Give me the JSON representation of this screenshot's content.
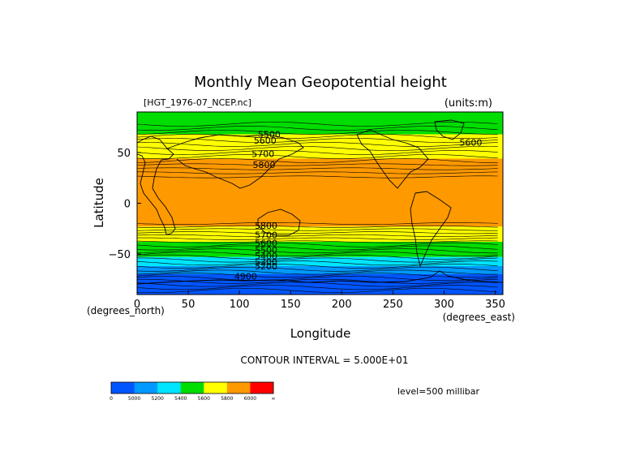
{
  "chart_data": {
    "type": "contour",
    "title": "Monthly Mean Geopotential height",
    "source_label": "[HGT_1976-07_NCEP.nc]",
    "units_label": "(units:m)",
    "xlabel": "Longitude",
    "ylabel": "Latitude",
    "x_units_label": "(degrees_east)",
    "y_units_label": "(degrees_north)",
    "xlim": [
      0,
      357.5
    ],
    "ylim": [
      -90,
      90
    ],
    "x_ticks": [
      {
        "value": 0,
        "label": "0"
      },
      {
        "value": 50,
        "label": "50"
      },
      {
        "value": 100,
        "label": "100"
      },
      {
        "value": 150,
        "label": "150"
      },
      {
        "value": 200,
        "label": "200"
      },
      {
        "value": 250,
        "label": "250"
      },
      {
        "value": 300,
        "label": "300"
      },
      {
        "value": 350,
        "label": "350"
      }
    ],
    "y_ticks": [
      {
        "value": 50,
        "label": "50"
      },
      {
        "value": 0,
        "label": "0"
      },
      {
        "value": -50,
        "label": "−50"
      }
    ],
    "contour_interval_text": "CONTOUR INTERVAL = 5.000E+01",
    "level_text": "level=500 millibar",
    "colorbar": {
      "colors": [
        "#0055ff",
        "#0099ff",
        "#00e5ff",
        "#00dd00",
        "#ffff00",
        "#ff9900",
        "#ff0000"
      ],
      "labels": [
        "0",
        "5000",
        "5200",
        "5400",
        "5600",
        "5800",
        "6000",
        "∞"
      ]
    },
    "bands": [
      {
        "lat_top": 90,
        "lat_bottom": 78,
        "color": "#00dd00"
      },
      {
        "lat_top": 78,
        "lat_bottom": 68,
        "color": "#00dd00"
      },
      {
        "lat_top": 68,
        "lat_bottom": 44,
        "color": "#ffff00"
      },
      {
        "lat_top": 44,
        "lat_bottom": -23,
        "color": "#ff9900"
      },
      {
        "lat_top": -23,
        "lat_bottom": -38,
        "color": "#ffff00"
      },
      {
        "lat_top": -38,
        "lat_bottom": -53,
        "color": "#00dd00"
      },
      {
        "lat_top": -53,
        "lat_bottom": -62,
        "color": "#00e5ff"
      },
      {
        "lat_top": -62,
        "lat_bottom": -70,
        "color": "#0099ff"
      },
      {
        "lat_top": -70,
        "lat_bottom": -90,
        "color": "#0055ff"
      }
    ],
    "contour_labels": [
      {
        "text": "5500",
        "lon": 118,
        "lat": 68
      },
      {
        "text": "5600",
        "lon": 114,
        "lat": 62
      },
      {
        "text": "5700",
        "lon": 112,
        "lat": 49
      },
      {
        "text": "5800",
        "lon": 113,
        "lat": 38
      },
      {
        "text": "5600",
        "lon": 315,
        "lat": 60
      },
      {
        "text": "5800",
        "lon": 115,
        "lat": -22
      },
      {
        "text": "5700",
        "lon": 115,
        "lat": -31
      },
      {
        "text": "5600",
        "lon": 115,
        "lat": -39
      },
      {
        "text": "5500",
        "lon": 115,
        "lat": -46
      },
      {
        "text": "5400",
        "lon": 115,
        "lat": -52
      },
      {
        "text": "5300",
        "lon": 115,
        "lat": -58
      },
      {
        "text": "5200",
        "lon": 115,
        "lat": -62
      },
      {
        "text": "4900",
        "lon": 95,
        "lat": -72
      }
    ],
    "grid": false
  }
}
